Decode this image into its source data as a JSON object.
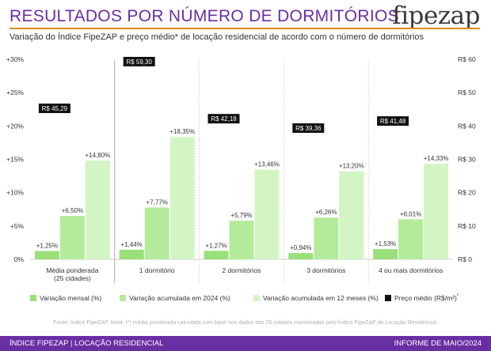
{
  "header": {
    "title": "RESULTADOS POR NÚMERO DE DORMITÓRIOS",
    "brand": "fipezap",
    "subtitle": "Variação do Índice FipeZAP e preço médio* de locação residencial de acordo com o número de dormitórios"
  },
  "chart_data": {
    "type": "bar",
    "categories": [
      "Média ponderada\n(25 cidades)",
      "1 dormitório",
      "2 dormitórios",
      "3 dormitórios",
      "4 ou mais dormitórios"
    ],
    "series": [
      {
        "name": "Variação mensal (%)",
        "values": [
          1.25,
          1.44,
          1.27,
          0.94,
          1.53
        ],
        "labels": [
          "+1,25%",
          "+1,44%",
          "+1,27%",
          "+0,94%",
          "+1,53%"
        ],
        "color": "#99e07a"
      },
      {
        "name": "Variação acumulada em 2024 (%)",
        "values": [
          6.5,
          7.77,
          5.79,
          6.26,
          6.01
        ],
        "labels": [
          "+6,50%",
          "+7,77%",
          "+5,79%",
          "+6,26%",
          "+6,01%"
        ],
        "color": "#b3eb9b"
      },
      {
        "name": "Variação acumulada em 12 meses (%)",
        "values": [
          14.8,
          18.35,
          13.46,
          13.2,
          14.33
        ],
        "labels": [
          "+14,80%",
          "+18,35%",
          "+13,46%",
          "+13,20%",
          "+14,33%"
        ],
        "color": "#d3f5c4"
      }
    ],
    "price_series": {
      "name": "Preço médio (R$/m²)",
      "sup": "*",
      "values": [
        45.29,
        59.3,
        42.18,
        39.36,
        41.48
      ],
      "labels": [
        "R$ 45,29",
        "R$ 59,30",
        "R$ 42,18",
        "R$ 39,36",
        "R$ 41,48"
      ],
      "color": "#111111"
    },
    "y_left": {
      "ylim": [
        0,
        30
      ],
      "ticks": [
        0,
        5,
        10,
        15,
        20,
        25,
        30
      ],
      "tick_labels": [
        "0%",
        "+5%",
        "+10%",
        "+15%",
        "+20%",
        "+25%",
        "+30%"
      ]
    },
    "y_right": {
      "ylim": [
        0,
        60
      ],
      "ticks": [
        0,
        10,
        20,
        30,
        40,
        50,
        60
      ],
      "tick_labels": [
        "R$ 0",
        "R$ 10",
        "R$ 20",
        "R$ 30",
        "R$ 40",
        "R$ 50",
        "R$ 60"
      ]
    },
    "legend_position": "bottom",
    "grid": false
  },
  "source_note": "Fonte: Índice FipeZAP. Nota: (*) média ponderada calculada com base nos dados das 25 cidades monitoradas pelo Índice FipeZAP de Locação Residencial.",
  "footer": {
    "left": "ÍNDICE FIPEZAP | LOCAÇÃO RESIDENCIAL",
    "right": "INFORME DE MAIO/2024"
  }
}
